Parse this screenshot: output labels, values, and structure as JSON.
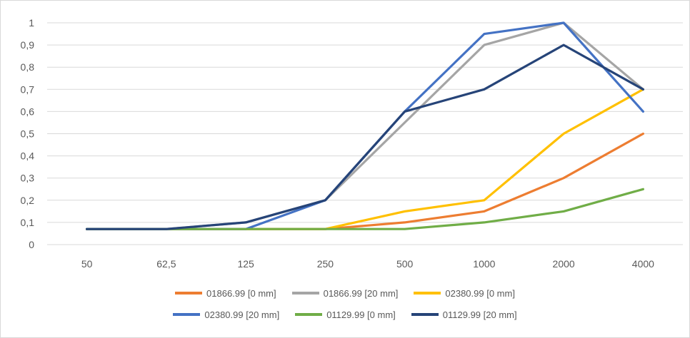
{
  "chart_data": {
    "type": "line",
    "categories": [
      "50",
      "62,5",
      "125",
      "250",
      "500",
      "1000",
      "2000",
      "4000"
    ],
    "ylim": [
      0,
      1
    ],
    "yticks": [
      "0",
      "0,1",
      "0,2",
      "0,3",
      "0,4",
      "0,5",
      "0,6",
      "0,7",
      "0,8",
      "0,9",
      "1"
    ],
    "grid": true,
    "legend_position": "bottom",
    "series": [
      {
        "name": "01866.99 [0 mm]",
        "color": "#ed7d31",
        "values": [
          0.07,
          0.07,
          0.07,
          0.07,
          0.1,
          0.15,
          0.3,
          0.5
        ]
      },
      {
        "name": "01866.99 [20 mm]",
        "color": "#a5a5a5",
        "values": [
          0.07,
          0.07,
          0.1,
          0.2,
          0.55,
          0.9,
          1.0,
          0.7
        ]
      },
      {
        "name": "02380.99 [0 mm]",
        "color": "#ffc000",
        "values": [
          0.07,
          0.07,
          0.07,
          0.07,
          0.15,
          0.2,
          0.5,
          0.7
        ]
      },
      {
        "name": "02380.99 [20 mm]",
        "color": "#4472c4",
        "values": [
          0.07,
          0.07,
          0.07,
          0.2,
          0.6,
          0.95,
          1.0,
          0.6
        ]
      },
      {
        "name": "01129.99 [0 mm]",
        "color": "#70ad47",
        "values": [
          0.07,
          0.07,
          0.07,
          0.07,
          0.07,
          0.1,
          0.15,
          0.25
        ]
      },
      {
        "name": "01129.99 [20 mm]",
        "color": "#264478",
        "values": [
          0.07,
          0.07,
          0.1,
          0.2,
          0.6,
          0.7,
          0.9,
          0.7
        ]
      }
    ]
  }
}
